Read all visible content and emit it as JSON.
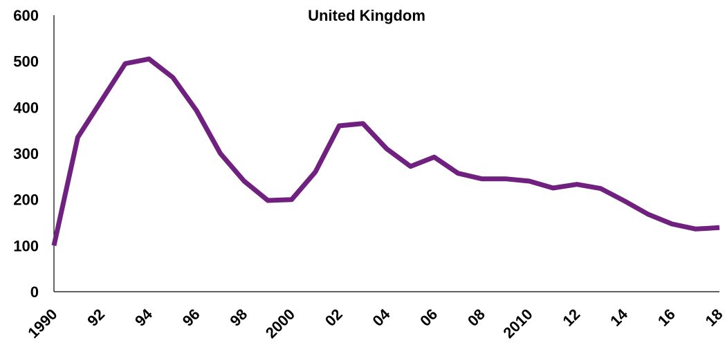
{
  "chart_data": {
    "type": "line",
    "title": "United Kingdom",
    "xlabel": "",
    "ylabel": "",
    "x": [
      1990,
      1991,
      1992,
      1993,
      1994,
      1995,
      1996,
      1997,
      1998,
      1999,
      2000,
      2001,
      2002,
      2003,
      2004,
      2005,
      2006,
      2007,
      2008,
      2009,
      2010,
      2011,
      2012,
      2013,
      2014,
      2015,
      2016,
      2017,
      2018
    ],
    "series": [
      {
        "name": "",
        "color": "#70207f",
        "values": [
          100,
          335,
          415,
          495,
          505,
          465,
          393,
          300,
          240,
          198,
          200,
          260,
          360,
          365,
          310,
          272,
          292,
          257,
          245,
          245,
          240,
          225,
          233,
          224,
          197,
          168,
          147,
          136,
          139
        ]
      }
    ],
    "ylim": [
      0,
      600
    ],
    "xlim": [
      1990,
      2018
    ],
    "yticks": [
      0,
      100,
      200,
      300,
      400,
      500,
      600
    ],
    "yticklabels": [
      "0",
      "100",
      "200",
      "300",
      "400",
      "500",
      "600"
    ],
    "xticks": [
      1990,
      1992,
      1994,
      1996,
      1998,
      2000,
      2002,
      2004,
      2006,
      2008,
      2010,
      2012,
      2014,
      2016,
      2018
    ],
    "xticklabels": [
      "1990",
      "92",
      "94",
      "96",
      "98",
      "2000",
      "02",
      "04",
      "06",
      "08",
      "2010",
      "12",
      "14",
      "16",
      "18"
    ],
    "grid": false,
    "legend": "none"
  }
}
